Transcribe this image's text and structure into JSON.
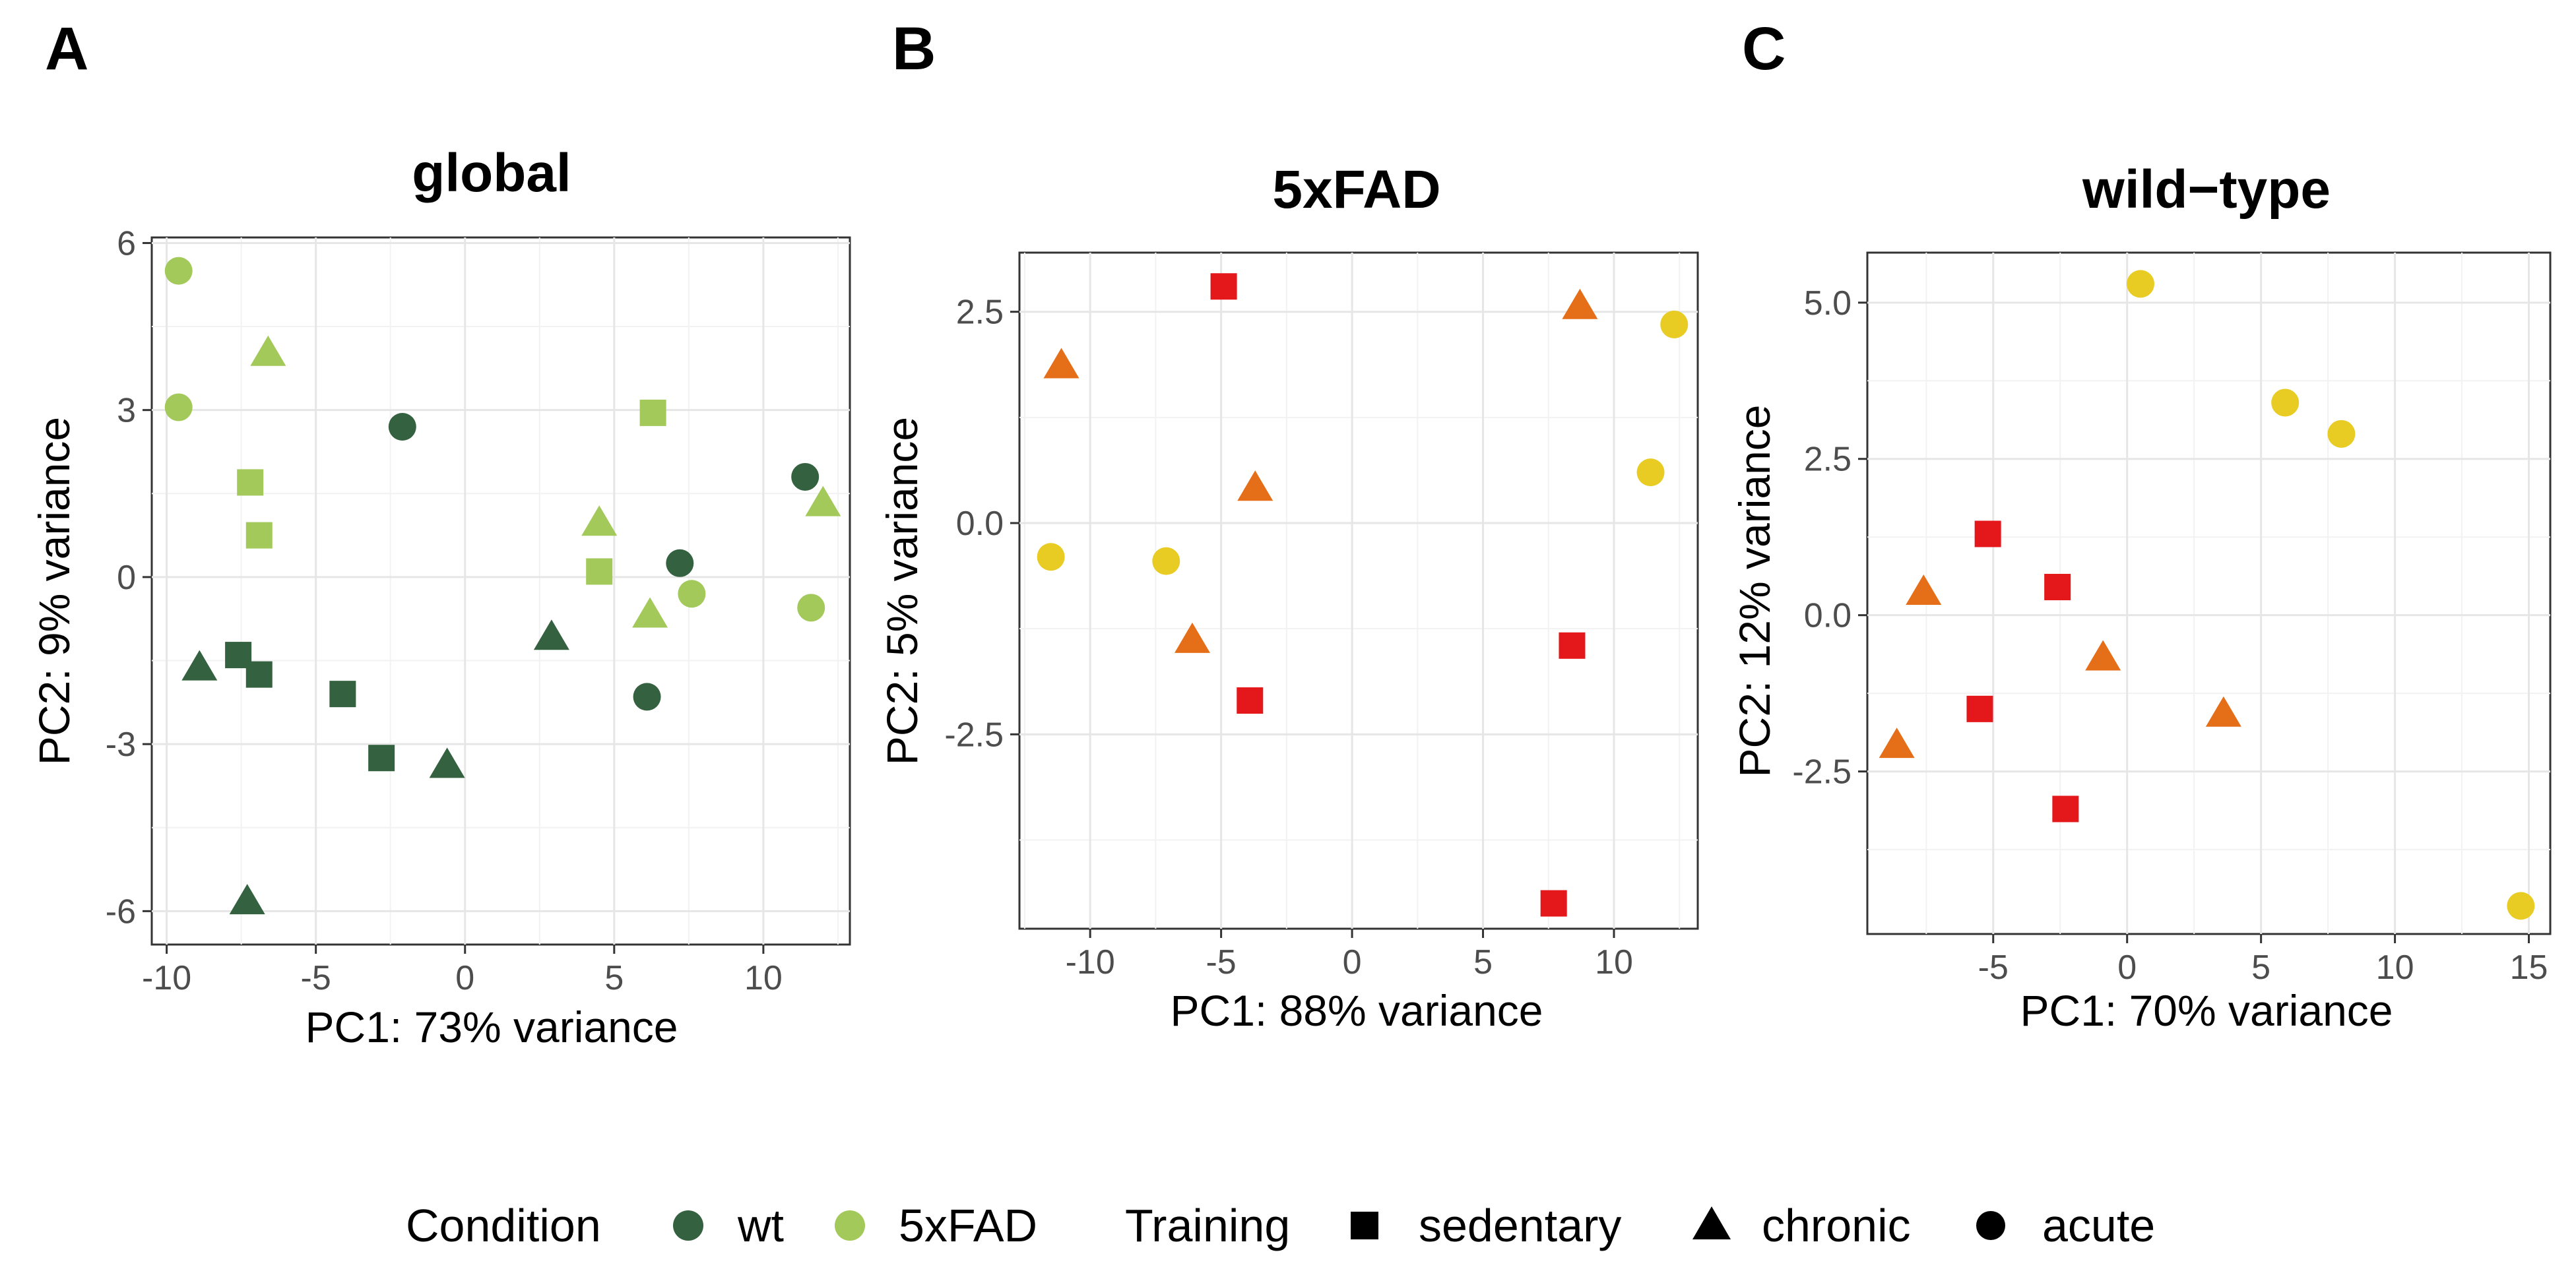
{
  "colors": {
    "wt": "#34613f",
    "5xFAD": "#a3c95b",
    "acute": "#e8cc24",
    "chronic": "#e56e19",
    "sedentary": "#e4171b",
    "legend_shape": "#000000"
  },
  "legend": {
    "condition_title": "Condition",
    "condition_items": [
      {
        "label": "wt",
        "color_key": "wt"
      },
      {
        "label": "5xFAD",
        "color_key": "5xFAD"
      }
    ],
    "training_title": "Training",
    "training_items": [
      {
        "label": "sedentary",
        "shape": "square"
      },
      {
        "label": "chronic",
        "shape": "triangle"
      },
      {
        "label": "acute",
        "shape": "circle"
      }
    ]
  },
  "chart_data": [
    {
      "type": "scatter",
      "panel": "A",
      "title": "global",
      "xlabel": "PC1: 73% variance",
      "ylabel": "PC2: 9% variance",
      "xlim": [
        -10.5,
        12.9
      ],
      "ylim": [
        -6.6,
        6.1
      ],
      "xticks": [
        -10,
        -5,
        0,
        5,
        10
      ],
      "xtick_labels": [
        "-10",
        "-5",
        "0",
        "5",
        "10"
      ],
      "yticks": [
        -6,
        -3,
        0,
        3,
        6
      ],
      "ytick_labels": [
        "-6",
        "-3",
        "0",
        "3",
        "6"
      ],
      "points": [
        {
          "x": -9.6,
          "y": 5.5,
          "color": "5xFAD",
          "shape": "circle"
        },
        {
          "x": -9.6,
          "y": 3.05,
          "color": "5xFAD",
          "shape": "circle"
        },
        {
          "x": -6.6,
          "y": 4.0,
          "color": "5xFAD",
          "shape": "triangle"
        },
        {
          "x": -7.2,
          "y": 1.7,
          "color": "5xFAD",
          "shape": "square"
        },
        {
          "x": -6.9,
          "y": 0.75,
          "color": "5xFAD",
          "shape": "square"
        },
        {
          "x": -2.1,
          "y": 2.7,
          "color": "wt",
          "shape": "circle"
        },
        {
          "x": 6.3,
          "y": 2.95,
          "color": "5xFAD",
          "shape": "square"
        },
        {
          "x": 4.5,
          "y": 0.95,
          "color": "5xFAD",
          "shape": "triangle"
        },
        {
          "x": 4.5,
          "y": 0.1,
          "color": "5xFAD",
          "shape": "square"
        },
        {
          "x": 7.2,
          "y": 0.25,
          "color": "wt",
          "shape": "circle"
        },
        {
          "x": 7.6,
          "y": -0.3,
          "color": "5xFAD",
          "shape": "circle"
        },
        {
          "x": 6.2,
          "y": -0.7,
          "color": "5xFAD",
          "shape": "triangle"
        },
        {
          "x": 11.4,
          "y": 1.8,
          "color": "wt",
          "shape": "circle"
        },
        {
          "x": 12.0,
          "y": 1.3,
          "color": "5xFAD",
          "shape": "triangle"
        },
        {
          "x": 11.6,
          "y": -0.55,
          "color": "5xFAD",
          "shape": "circle"
        },
        {
          "x": -8.9,
          "y": -1.65,
          "color": "wt",
          "shape": "triangle"
        },
        {
          "x": -7.6,
          "y": -1.4,
          "color": "wt",
          "shape": "square"
        },
        {
          "x": -6.9,
          "y": -1.75,
          "color": "wt",
          "shape": "square"
        },
        {
          "x": -4.1,
          "y": -2.1,
          "color": "wt",
          "shape": "square"
        },
        {
          "x": -2.8,
          "y": -3.25,
          "color": "wt",
          "shape": "square"
        },
        {
          "x": -0.6,
          "y": -3.4,
          "color": "wt",
          "shape": "triangle"
        },
        {
          "x": 2.9,
          "y": -1.1,
          "color": "wt",
          "shape": "triangle"
        },
        {
          "x": 6.1,
          "y": -2.15,
          "color": "wt",
          "shape": "circle"
        },
        {
          "x": -7.3,
          "y": -5.85,
          "color": "wt",
          "shape": "triangle"
        }
      ]
    },
    {
      "type": "scatter",
      "panel": "B",
      "title": "5xFAD",
      "xlabel": "PC1: 88% variance",
      "ylabel": "PC2: 5% variance",
      "xlim": [
        -12.7,
        13.2
      ],
      "ylim": [
        -4.8,
        3.2
      ],
      "xticks": [
        -10,
        -5,
        0,
        5,
        10
      ],
      "xtick_labels": [
        "-10",
        "-5",
        "0",
        "5",
        "10"
      ],
      "yticks": [
        -2.5,
        0.0,
        2.5
      ],
      "ytick_labels": [
        "-2.5",
        "0.0",
        "2.5"
      ],
      "points": [
        {
          "x": -4.9,
          "y": 2.8,
          "color": "sedentary",
          "shape": "square"
        },
        {
          "x": -11.1,
          "y": 1.85,
          "color": "chronic",
          "shape": "triangle"
        },
        {
          "x": 8.7,
          "y": 2.55,
          "color": "chronic",
          "shape": "triangle"
        },
        {
          "x": 12.3,
          "y": 2.35,
          "color": "acute",
          "shape": "circle"
        },
        {
          "x": -3.7,
          "y": 0.4,
          "color": "chronic",
          "shape": "triangle"
        },
        {
          "x": 11.4,
          "y": 0.6,
          "color": "acute",
          "shape": "circle"
        },
        {
          "x": -11.5,
          "y": -0.4,
          "color": "acute",
          "shape": "circle"
        },
        {
          "x": -7.1,
          "y": -0.45,
          "color": "acute",
          "shape": "circle"
        },
        {
          "x": -6.1,
          "y": -1.4,
          "color": "chronic",
          "shape": "triangle"
        },
        {
          "x": 8.4,
          "y": -1.45,
          "color": "sedentary",
          "shape": "square"
        },
        {
          "x": -3.9,
          "y": -2.1,
          "color": "sedentary",
          "shape": "square"
        },
        {
          "x": 7.7,
          "y": -4.5,
          "color": "sedentary",
          "shape": "square"
        }
      ]
    },
    {
      "type": "scatter",
      "panel": "C",
      "title": "wild−type",
      "xlabel": "PC1: 70% variance",
      "ylabel": "PC2: 12% variance",
      "xlim": [
        -9.7,
        15.8
      ],
      "ylim": [
        -5.1,
        5.8
      ],
      "xticks": [
        -5,
        0,
        5,
        10,
        15
      ],
      "xtick_labels": [
        "-5",
        "0",
        "5",
        "10",
        "15"
      ],
      "yticks": [
        -2.5,
        0.0,
        2.5,
        5.0
      ],
      "ytick_labels": [
        "-2.5",
        "0.0",
        "2.5",
        "5.0"
      ],
      "points": [
        {
          "x": 0.5,
          "y": 5.3,
          "color": "acute",
          "shape": "circle"
        },
        {
          "x": 5.9,
          "y": 3.4,
          "color": "acute",
          "shape": "circle"
        },
        {
          "x": 8.0,
          "y": 2.9,
          "color": "acute",
          "shape": "circle"
        },
        {
          "x": -5.2,
          "y": 1.3,
          "color": "sedentary",
          "shape": "square"
        },
        {
          "x": -2.6,
          "y": 0.45,
          "color": "sedentary",
          "shape": "square"
        },
        {
          "x": -7.6,
          "y": 0.35,
          "color": "chronic",
          "shape": "triangle"
        },
        {
          "x": -0.9,
          "y": -0.7,
          "color": "chronic",
          "shape": "triangle"
        },
        {
          "x": -5.5,
          "y": -1.5,
          "color": "sedentary",
          "shape": "square"
        },
        {
          "x": 3.6,
          "y": -1.6,
          "color": "chronic",
          "shape": "triangle"
        },
        {
          "x": -8.6,
          "y": -2.1,
          "color": "chronic",
          "shape": "triangle"
        },
        {
          "x": -2.3,
          "y": -3.1,
          "color": "sedentary",
          "shape": "square"
        },
        {
          "x": 14.7,
          "y": -4.65,
          "color": "acute",
          "shape": "circle"
        }
      ]
    }
  ]
}
